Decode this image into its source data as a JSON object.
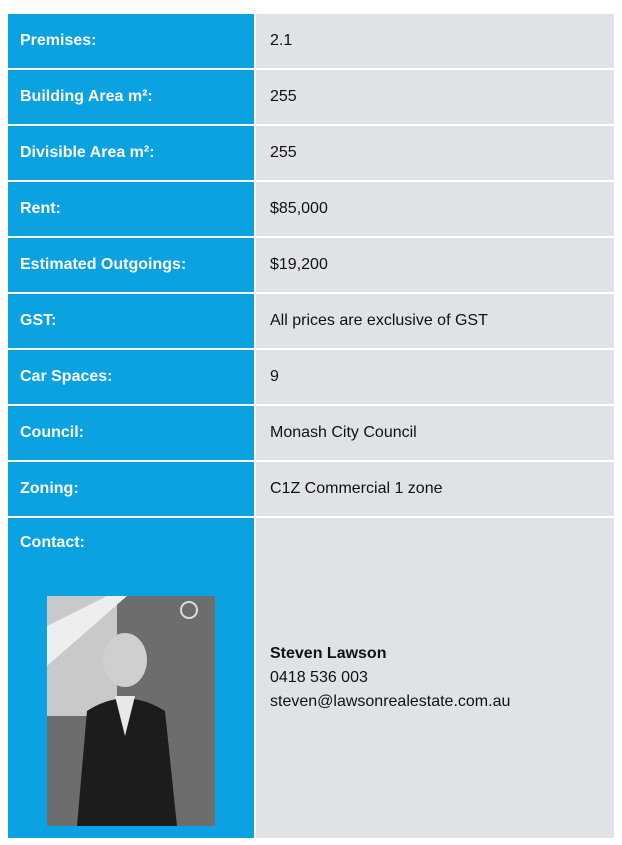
{
  "rows": [
    {
      "label": "Premises:",
      "value": "2.1"
    },
    {
      "label": "Building Area m²:",
      "value": "255"
    },
    {
      "label": "Divisible Area m²:",
      "value": "255"
    },
    {
      "label": "Rent:",
      "value": "$85,000"
    },
    {
      "label": "Estimated Outgoings:",
      "value": "$19,200"
    },
    {
      "label": "GST:",
      "value": "All prices are exclusive of GST"
    },
    {
      "label": "Car Spaces:",
      "value": "9"
    },
    {
      "label": "Council:",
      "value": "Monash City Council"
    },
    {
      "label": "Zoning:",
      "value": "C1Z  Commercial 1 zone"
    }
  ],
  "contact": {
    "label": "Contact:",
    "name": "Steven Lawson",
    "phone": "0418 536 003",
    "email": "steven@lawsonrealestate.com.au"
  }
}
